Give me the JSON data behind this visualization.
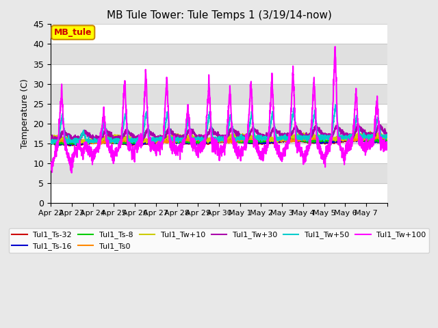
{
  "title": "MB Tule Tower: Tule Temps 1 (3/19/14-now)",
  "ylabel": "Temperature (C)",
  "ylim": [
    0,
    45
  ],
  "yticks": [
    0,
    5,
    10,
    15,
    20,
    25,
    30,
    35,
    40,
    45
  ],
  "background_color": "#e8e8e8",
  "plot_bg_color": "#ffffff",
  "band_color": "#e0e0e0",
  "legend_box_color": "#ffff00",
  "legend_box_edge": "#cc8800",
  "legend_label": "MB_tule",
  "legend_text_color": "#cc0000",
  "series": [
    {
      "label": "Tul1_Ts-32",
      "color": "#cc0000",
      "lw": 1.5,
      "zorder": 5
    },
    {
      "label": "Tul1_Ts-16",
      "color": "#0000cc",
      "lw": 1.5,
      "zorder": 5
    },
    {
      "label": "Tul1_Ts-8",
      "color": "#00cc00",
      "lw": 1.5,
      "zorder": 5
    },
    {
      "label": "Tul1_Ts0",
      "color": "#ff8800",
      "lw": 1.5,
      "zorder": 5
    },
    {
      "label": "Tul1_Tw+10",
      "color": "#cccc00",
      "lw": 1.5,
      "zorder": 5
    },
    {
      "label": "Tul1_Tw+30",
      "color": "#aa00aa",
      "lw": 1.5,
      "zorder": 5
    },
    {
      "label": "Tul1_Tw+50",
      "color": "#00cccc",
      "lw": 1.5,
      "zorder": 6
    },
    {
      "label": "Tul1_Tw+100",
      "color": "#ff00ff",
      "lw": 1.5,
      "zorder": 7
    }
  ],
  "n_days": 16,
  "xticklabels": [
    "Apr 22",
    "Apr 23",
    "Apr 24",
    "Apr 25",
    "Apr 26",
    "Apr 27",
    "Apr 28",
    "Apr 29",
    "Apr 30",
    "May 1",
    "May 2",
    "May 3",
    "May 4",
    "May 5",
    "May 6",
    "May 7"
  ]
}
